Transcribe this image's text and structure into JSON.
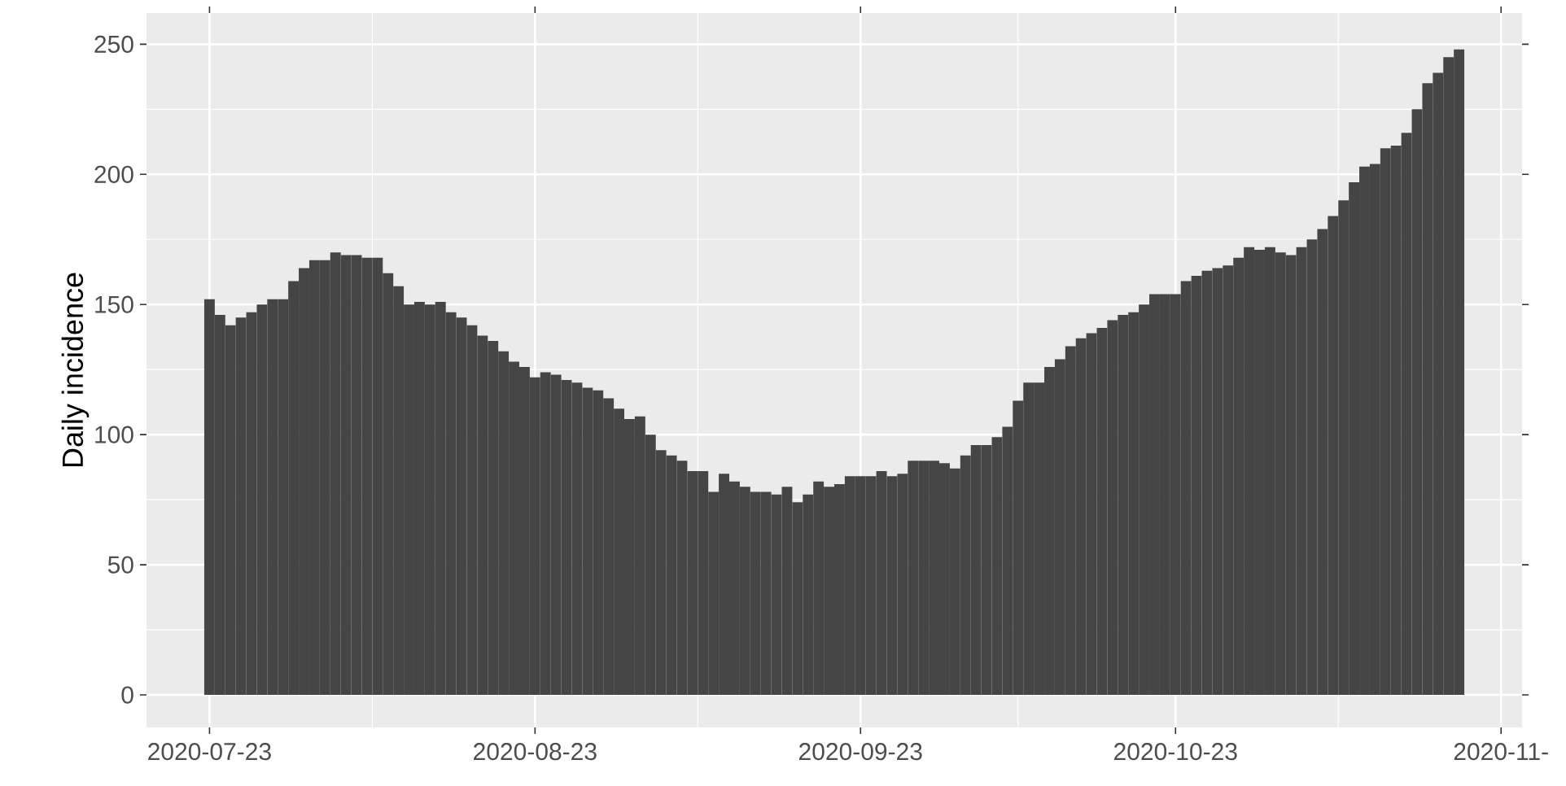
{
  "chart_data": {
    "type": "bar",
    "ylabel": "Daily incidence",
    "color": "#454545",
    "x": [
      "2020-07-23",
      "2020-07-24",
      "2020-07-25",
      "2020-07-26",
      "2020-07-27",
      "2020-07-28",
      "2020-07-29",
      "2020-07-30",
      "2020-07-31",
      "2020-08-01",
      "2020-08-02",
      "2020-08-03",
      "2020-08-04",
      "2020-08-05",
      "2020-08-06",
      "2020-08-07",
      "2020-08-08",
      "2020-08-09",
      "2020-08-10",
      "2020-08-11",
      "2020-08-12",
      "2020-08-13",
      "2020-08-14",
      "2020-08-15",
      "2020-08-16",
      "2020-08-17",
      "2020-08-18",
      "2020-08-19",
      "2020-08-20",
      "2020-08-21",
      "2020-08-22",
      "2020-08-23",
      "2020-08-24",
      "2020-08-25",
      "2020-08-26",
      "2020-08-27",
      "2020-08-28",
      "2020-08-29",
      "2020-08-30",
      "2020-08-31",
      "2020-09-01",
      "2020-09-02",
      "2020-09-03",
      "2020-09-04",
      "2020-09-05",
      "2020-09-06",
      "2020-09-07",
      "2020-09-08",
      "2020-09-09",
      "2020-09-10",
      "2020-09-11",
      "2020-09-12",
      "2020-09-13",
      "2020-09-14",
      "2020-09-15",
      "2020-09-16",
      "2020-09-17",
      "2020-09-18",
      "2020-09-19",
      "2020-09-20",
      "2020-09-21",
      "2020-09-22",
      "2020-09-23",
      "2020-09-24",
      "2020-09-25",
      "2020-09-26",
      "2020-09-27",
      "2020-09-28",
      "2020-09-29",
      "2020-09-30",
      "2020-10-01",
      "2020-10-02",
      "2020-10-03",
      "2020-10-04",
      "2020-10-05",
      "2020-10-06",
      "2020-10-07",
      "2020-10-08",
      "2020-10-09",
      "2020-10-10",
      "2020-10-11",
      "2020-10-12",
      "2020-10-13",
      "2020-10-14",
      "2020-10-15",
      "2020-10-16",
      "2020-10-17",
      "2020-10-18",
      "2020-10-19",
      "2020-10-20",
      "2020-10-21",
      "2020-10-22",
      "2020-10-23",
      "2020-10-24",
      "2020-10-25",
      "2020-10-26",
      "2020-10-27",
      "2020-10-28",
      "2020-10-29",
      "2020-10-30",
      "2020-10-31",
      "2020-11-01",
      "2020-11-02",
      "2020-11-03",
      "2020-11-04",
      "2020-11-05",
      "2020-11-06",
      "2020-11-07",
      "2020-11-08",
      "2020-11-09",
      "2020-11-10",
      "2020-11-11",
      "2020-11-12",
      "2020-11-13",
      "2020-11-14",
      "2020-11-15",
      "2020-11-16",
      "2020-11-17",
      "2020-11-18",
      "2020-11-19"
    ],
    "values": [
      152,
      146,
      142,
      145,
      147,
      150,
      152,
      152,
      159,
      164,
      167,
      167,
      170,
      169,
      169,
      168,
      168,
      162,
      157,
      150,
      151,
      150,
      151,
      147,
      145,
      142,
      138,
      136,
      132,
      128,
      126,
      122,
      124,
      123,
      121,
      120,
      118,
      117,
      114,
      110,
      106,
      107,
      100,
      94,
      92,
      90,
      86,
      86,
      78,
      85,
      82,
      80,
      78,
      78,
      77,
      80,
      74,
      77,
      82,
      80,
      81,
      84,
      84,
      84,
      86,
      84,
      85,
      90,
      90,
      90,
      89,
      87,
      92,
      96,
      96,
      99,
      103,
      113,
      120,
      120,
      126,
      129,
      134,
      137,
      139,
      141,
      144,
      146,
      147,
      150,
      154,
      154,
      154,
      159,
      161,
      163,
      164,
      165,
      168,
      172,
      171,
      172,
      170,
      169,
      172,
      175,
      179,
      184,
      190,
      197,
      203,
      204,
      210,
      211,
      216,
      225,
      235,
      239,
      245,
      248
    ],
    "xlim": [
      "2020-07-17",
      "2020-11-25"
    ],
    "xticks": [
      "2020-07-23",
      "2020-08-23",
      "2020-09-23",
      "2020-10-23",
      {
        "value": "2020-11-23",
        "label": "2020-11-"
      }
    ],
    "ylim": [
      -12.5,
      262
    ],
    "yticks": [
      0,
      50,
      100,
      150,
      200,
      250
    ],
    "grid": true
  }
}
